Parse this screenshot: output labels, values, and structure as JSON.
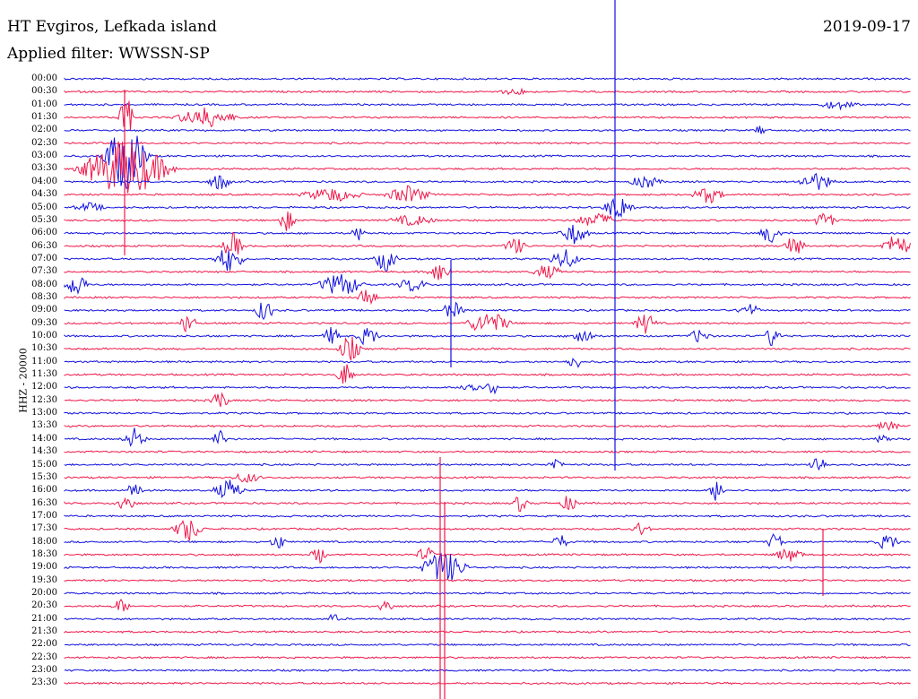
{
  "header": {
    "station": "HT Evgiros, Lefkada island",
    "filter": "Applied filter: WWSSN-SP",
    "date": "2019-09-17",
    "channel": "HHZ - 20000"
  },
  "colors": {
    "trace_a": "#1010e0",
    "trace_b": "#f0184a"
  },
  "rows": [
    "00:00",
    "00:30",
    "01:00",
    "01:30",
    "02:00",
    "02:30",
    "03:00",
    "03:30",
    "04:00",
    "04:30",
    "05:00",
    "05:30",
    "06:00",
    "06:30",
    "07:00",
    "07:30",
    "08:00",
    "08:30",
    "09:00",
    "09:30",
    "10:00",
    "10:30",
    "11:00",
    "11:30",
    "12:00",
    "12:30",
    "13:00",
    "13:30",
    "14:00",
    "14:30",
    "15:00",
    "15:30",
    "16:00",
    "16:30",
    "17:00",
    "17:30",
    "18:00",
    "18:30",
    "19:00",
    "19:30",
    "20:00",
    "20:30",
    "21:00",
    "21:30",
    "22:00",
    "22:30",
    "23:00",
    "23:30"
  ]
}
